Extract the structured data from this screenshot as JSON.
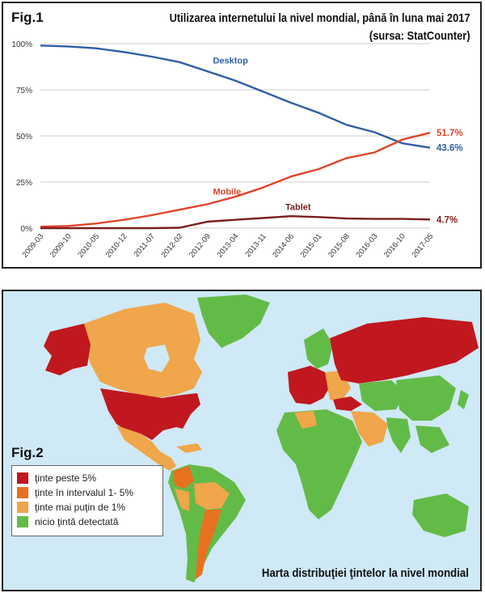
{
  "fig1": {
    "label": "Fig.1",
    "title_line1": "Utilizarea internetului la nivel mondial, până în luna mai 2017",
    "title_line2": "(sursa: StatCounter)"
  },
  "chart_data": {
    "type": "line",
    "ylim": [
      0,
      100
    ],
    "y_ticks": [
      "100%",
      "75%",
      "50%",
      "25%",
      "0%"
    ],
    "x_ticks": [
      "2009-03",
      "2009-10",
      "2010-05",
      "2010-12",
      "2011-07",
      "2012-02",
      "2012-09",
      "2013-04",
      "2013-11",
      "2014-06",
      "2015-01",
      "2015-08",
      "2016-03",
      "2016-10",
      "2017-05"
    ],
    "series": [
      {
        "name": "Desktop",
        "color": "#2f5fa8",
        "end_label": "43.6%",
        "values": [
          99,
          98.5,
          97.5,
          95.5,
          93,
          90,
          85,
          80,
          74,
          68,
          62.5,
          56,
          52,
          46,
          43.6
        ]
      },
      {
        "name": "Mobile",
        "color": "#e0452b",
        "end_label": "51.7%",
        "values": [
          0.8,
          1.2,
          2.5,
          4.5,
          7,
          10,
          13,
          17,
          22,
          28,
          32,
          38,
          41,
          48,
          51.7
        ]
      },
      {
        "name": "Tablet",
        "color": "#7a1f1f",
        "end_label": "4.7%",
        "values": [
          0,
          0,
          0,
          0,
          0,
          0.2,
          3.5,
          4.5,
          5.5,
          6.5,
          6,
          5.2,
          5,
          5,
          4.7
        ]
      }
    ]
  },
  "fig2": {
    "label": "Fig.2",
    "caption": "Harta distribuţiei ţintelor la nivel mondial",
    "legend": [
      {
        "label": "ţinte peste 5%",
        "color": "#c0181e"
      },
      {
        "label": "ţinte în intervalul 1- 5%",
        "color": "#e8711f"
      },
      {
        "label": "ţinte mai puţin de 1%",
        "color": "#f0a64a"
      },
      {
        "label": "nicio ţintă detectată",
        "color": "#63bb47"
      }
    ]
  }
}
